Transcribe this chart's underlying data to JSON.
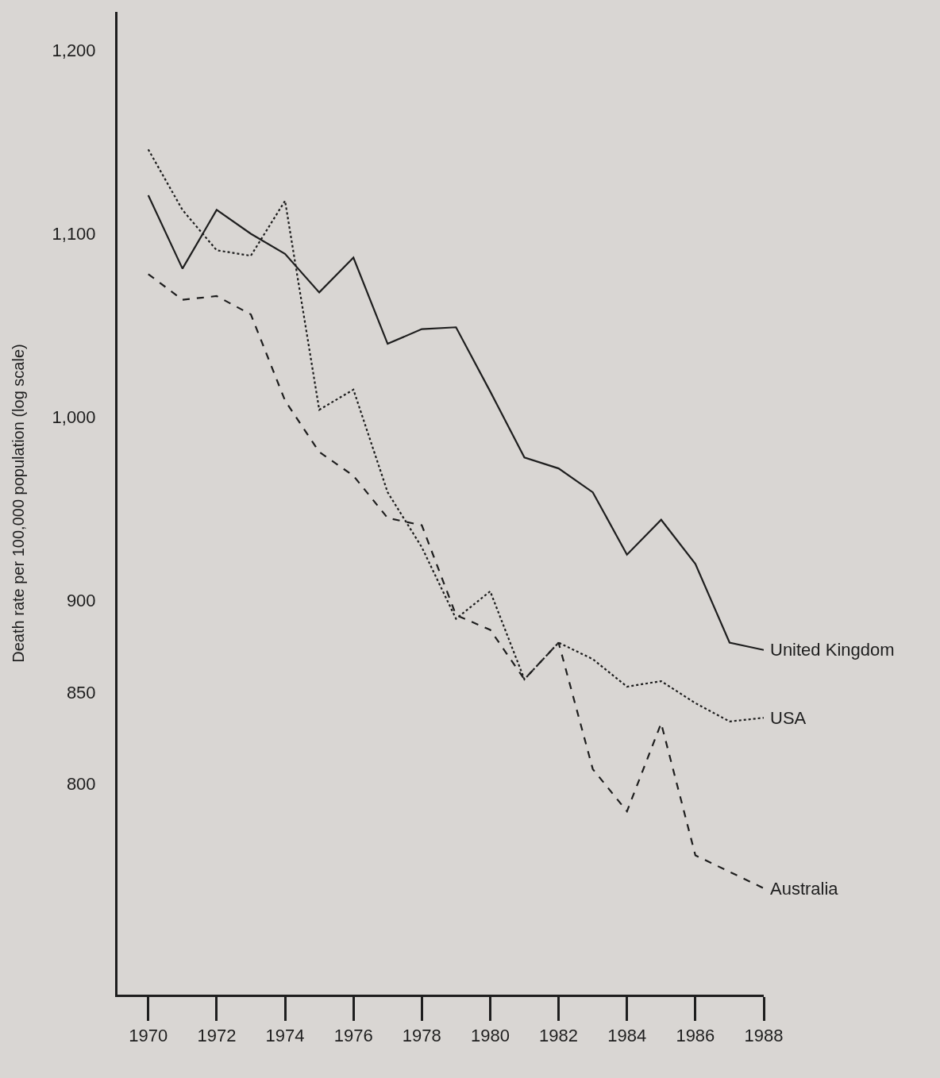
{
  "chart_data": {
    "type": "line",
    "ylabel": "Death rate per 100,000 population (log scale)",
    "x": [
      1970,
      1971,
      1972,
      1973,
      1974,
      1975,
      1976,
      1977,
      1978,
      1979,
      1980,
      1981,
      1982,
      1983,
      1984,
      1985,
      1986,
      1987,
      1988
    ],
    "series": [
      {
        "name": "United Kingdom",
        "color": "#1e1e1e",
        "line_style": "solid",
        "values": [
          1121,
          1081,
          1113,
          1100,
          1089,
          1068,
          1087,
          1040,
          1048,
          1049,
          1014,
          978,
          972,
          959,
          925,
          944,
          920,
          877,
          873
        ]
      },
      {
        "name": "USA",
        "color": "#1e1e1e",
        "line_style": "dotted",
        "values": [
          1146,
          1113,
          1091,
          1088,
          1118,
          1004,
          1015,
          959,
          929,
          890,
          905,
          857,
          877,
          868,
          853,
          856,
          844,
          834,
          836
        ]
      },
      {
        "name": "Australia",
        "color": "#1e1e1e",
        "line_style": "dashed",
        "values": [
          1078,
          1064,
          1066,
          1056,
          1009,
          981,
          968,
          945,
          941,
          892,
          884,
          857,
          877,
          808,
          785,
          833,
          761,
          752,
          743
        ]
      }
    ],
    "xlim": [
      1969.1,
      1988
    ],
    "xticks": [
      1970,
      1972,
      1974,
      1976,
      1978,
      1980,
      1982,
      1984,
      1986,
      1988
    ],
    "ylim": [
      685,
      1221
    ],
    "yticks": [
      800,
      850,
      900,
      {
        "value": 1000,
        "label": "1,000"
      },
      {
        "value": 1100,
        "label": "1,100"
      },
      {
        "value": 1200,
        "label": "1,200"
      }
    ],
    "grid": false,
    "legend": false
  }
}
